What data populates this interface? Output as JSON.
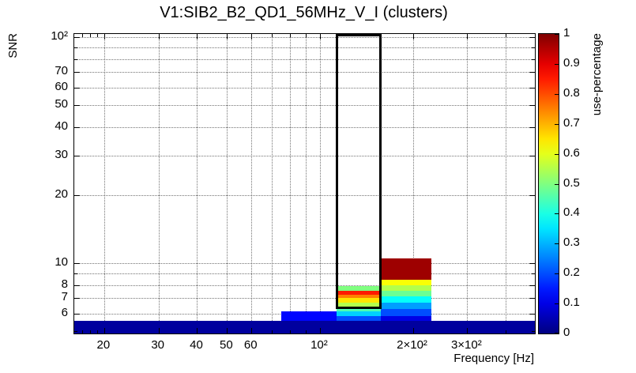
{
  "chart_data": {
    "type": "heatmap",
    "title": "V1:SIB2_B2_QD1_56MHz_V_I (clusters)",
    "xlabel": "Frequency [Hz]",
    "ylabel": "SNR",
    "x_scale": "log",
    "y_scale": "log",
    "x_range": [
      16,
      497
    ],
    "y_range": [
      4.89,
      103.3
    ],
    "grid": true,
    "grid_style": "dotted",
    "colorbar": {
      "label": "use-percentage",
      "min": 0,
      "max": 1,
      "palette": "rainbow-jet",
      "tick_values": [
        0,
        0.1,
        0.2,
        0.3,
        0.4,
        0.5,
        0.6,
        0.7,
        0.8,
        0.9,
        1
      ],
      "tick_labels": [
        "0",
        "0.1",
        "0.2",
        "0.3",
        "0.4",
        "0.5",
        "0.6",
        "0.7",
        "0.8",
        "0.9",
        "1"
      ]
    },
    "x_ticks": [
      {
        "value": 20,
        "label": "20"
      },
      {
        "value": 30,
        "label": "30"
      },
      {
        "value": 40,
        "label": "40"
      },
      {
        "value": 50,
        "label": "50"
      },
      {
        "value": 60,
        "label": "60"
      },
      {
        "value": 100,
        "label": "10²"
      },
      {
        "value": 200,
        "label": "2×10²"
      },
      {
        "value": 300,
        "label": "3×10²"
      }
    ],
    "x_minor_ticks": [
      17,
      18,
      19,
      70,
      80,
      90,
      400
    ],
    "y_ticks": [
      {
        "value": 6,
        "label": "6"
      },
      {
        "value": 7,
        "label": "7"
      },
      {
        "value": 8,
        "label": "8"
      },
      {
        "value": 10,
        "label": "10"
      },
      {
        "value": 20,
        "label": "20"
      },
      {
        "value": 30,
        "label": "30"
      },
      {
        "value": 40,
        "label": "40"
      },
      {
        "value": 50,
        "label": "50"
      },
      {
        "value": 60,
        "label": "60"
      },
      {
        "value": 70,
        "label": "70"
      },
      {
        "value": 100,
        "label": "10²"
      }
    ],
    "y_minor_ticks": [
      5,
      9,
      80,
      90
    ],
    "x_gridlines": [
      20,
      30,
      40,
      50,
      60,
      70,
      80,
      90,
      100,
      200,
      300,
      400
    ],
    "y_gridlines": [
      6,
      7,
      8,
      9,
      10,
      20,
      30,
      40,
      50,
      60,
      70,
      80,
      90,
      100
    ],
    "selection_box": {
      "f_min": 113,
      "f_max": 157.5,
      "snr_min": 6.27,
      "snr_max": 103.3
    },
    "cells": [
      {
        "f_min": 16,
        "f_max": 497,
        "snr_min": 4.89,
        "snr_max": 5.56,
        "use": 0.03
      },
      {
        "f_min": 75,
        "f_max": 113,
        "snr_min": 5.56,
        "snr_max": 6.13,
        "use": 0.13
      },
      {
        "f_min": 113,
        "f_max": 157.5,
        "snr_min": 5.56,
        "snr_max": 5.85,
        "use": 0.2
      },
      {
        "f_min": 113,
        "f_max": 157.5,
        "snr_min": 5.85,
        "snr_max": 6.13,
        "use": 0.33
      },
      {
        "f_min": 113,
        "f_max": 157.5,
        "snr_min": 6.13,
        "snr_max": 6.4,
        "use": 0.45
      },
      {
        "f_min": 113,
        "f_max": 157.5,
        "snr_min": 6.4,
        "snr_max": 6.7,
        "use": 0.55
      },
      {
        "f_min": 113,
        "f_max": 157.5,
        "snr_min": 6.7,
        "snr_max": 7.0,
        "use": 0.65
      },
      {
        "f_min": 113,
        "f_max": 157.5,
        "snr_min": 7.0,
        "snr_max": 7.25,
        "use": 0.75
      },
      {
        "f_min": 113,
        "f_max": 157.5,
        "snr_min": 7.25,
        "snr_max": 7.55,
        "use": 0.85
      },
      {
        "f_min": 113,
        "f_max": 157.5,
        "snr_min": 7.55,
        "snr_max": 7.95,
        "use": 0.5
      },
      {
        "f_min": 157.5,
        "f_max": 230,
        "snr_min": 5.56,
        "snr_max": 5.85,
        "use": 0.1
      },
      {
        "f_min": 157.5,
        "f_max": 230,
        "snr_min": 5.85,
        "snr_max": 6.27,
        "use": 0.2
      },
      {
        "f_min": 157.5,
        "f_max": 230,
        "snr_min": 6.27,
        "snr_max": 6.69,
        "use": 0.28
      },
      {
        "f_min": 157.5,
        "f_max": 230,
        "snr_min": 6.69,
        "snr_max": 7.14,
        "use": 0.38
      },
      {
        "f_min": 157.5,
        "f_max": 230,
        "snr_min": 7.14,
        "snr_max": 7.55,
        "use": 0.48
      },
      {
        "f_min": 157.5,
        "f_max": 230,
        "snr_min": 7.55,
        "snr_max": 7.98,
        "use": 0.55
      },
      {
        "f_min": 157.5,
        "f_max": 230,
        "snr_min": 7.98,
        "snr_max": 8.47,
        "use": 0.62
      },
      {
        "f_min": 157.5,
        "f_max": 230,
        "snr_min": 8.47,
        "snr_max": 10.5,
        "use": 0.97
      }
    ]
  }
}
